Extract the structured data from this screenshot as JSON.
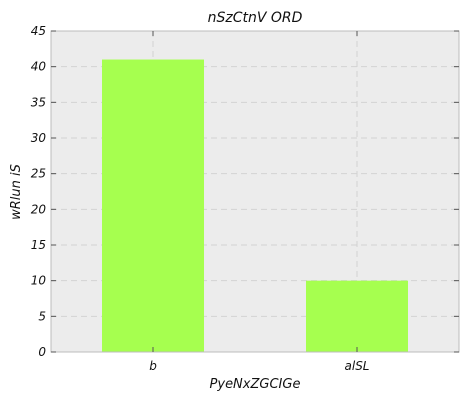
{
  "chart_data": {
    "type": "bar",
    "title": "nSzCtnV ORD",
    "xlabel": "PyeNxZGCIGe",
    "ylabel": "wRlun iS",
    "categories": [
      "b",
      "alSL"
    ],
    "values": [
      41,
      10
    ],
    "ylim": [
      0,
      45
    ],
    "yticks": [
      0,
      5,
      10,
      15,
      20,
      25,
      30,
      35,
      40,
      45
    ],
    "grid": true,
    "bar_color": "#a6ff4f",
    "background_color": "#ececec",
    "grid_color": "#d2d2d2"
  }
}
